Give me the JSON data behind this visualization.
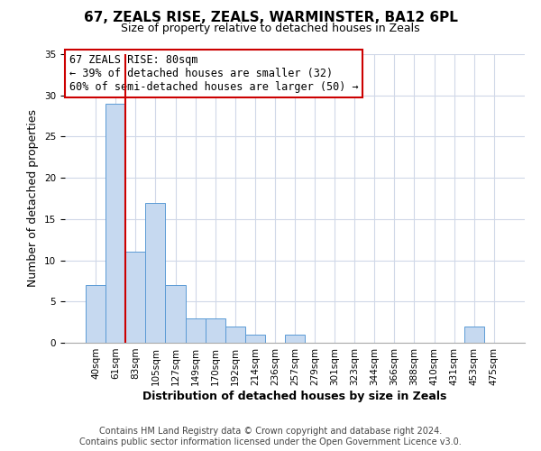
{
  "title": "67, ZEALS RISE, ZEALS, WARMINSTER, BA12 6PL",
  "subtitle": "Size of property relative to detached houses in Zeals",
  "xlabel": "Distribution of detached houses by size in Zeals",
  "ylabel": "Number of detached properties",
  "footer_lines": [
    "Contains HM Land Registry data © Crown copyright and database right 2024.",
    "Contains public sector information licensed under the Open Government Licence v3.0."
  ],
  "bin_labels": [
    "40sqm",
    "61sqm",
    "83sqm",
    "105sqm",
    "127sqm",
    "149sqm",
    "170sqm",
    "192sqm",
    "214sqm",
    "236sqm",
    "257sqm",
    "279sqm",
    "301sqm",
    "323sqm",
    "344sqm",
    "366sqm",
    "388sqm",
    "410sqm",
    "431sqm",
    "453sqm",
    "475sqm"
  ],
  "bar_values": [
    7,
    29,
    11,
    17,
    7,
    3,
    3,
    2,
    1,
    0,
    1,
    0,
    0,
    0,
    0,
    0,
    0,
    0,
    0,
    2,
    0
  ],
  "bar_color": "#c6d9f0",
  "bar_edge_color": "#5b9bd5",
  "vline_x_idx": 2,
  "vline_color": "#cc0000",
  "annotation_box_text": "67 ZEALS RISE: 80sqm\n← 39% of detached houses are smaller (32)\n60% of semi-detached houses are larger (50) →",
  "ylim": [
    0,
    35
  ],
  "yticks": [
    0,
    5,
    10,
    15,
    20,
    25,
    30,
    35
  ],
  "background_color": "#ffffff",
  "grid_color": "#d0d8e8",
  "title_fontsize": 11,
  "subtitle_fontsize": 9,
  "axis_label_fontsize": 9,
  "tick_fontsize": 7.5,
  "annotation_fontsize": 8.5,
  "footer_fontsize": 7
}
